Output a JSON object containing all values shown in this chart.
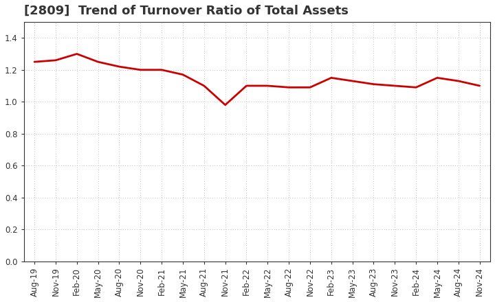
{
  "title": "[2809]  Trend of Turnover Ratio of Total Assets",
  "x_labels": [
    "Aug-19",
    "Nov-19",
    "Feb-20",
    "May-20",
    "Aug-20",
    "Nov-20",
    "Feb-21",
    "May-21",
    "Aug-21",
    "Nov-21",
    "Feb-22",
    "May-22",
    "Aug-22",
    "Nov-22",
    "Feb-23",
    "May-23",
    "Aug-23",
    "Nov-23",
    "Feb-24",
    "May-24",
    "Aug-24",
    "Nov-24"
  ],
  "y_values": [
    1.25,
    1.26,
    1.3,
    1.25,
    1.22,
    1.2,
    1.2,
    1.17,
    1.1,
    0.98,
    1.1,
    1.1,
    1.09,
    1.09,
    1.15,
    1.13,
    1.11,
    1.1,
    1.09,
    1.15,
    1.13,
    1.1
  ],
  "line_color": "#cc0000",
  "line_width": 2.0,
  "ylim": [
    0.0,
    1.5
  ],
  "yticks": [
    0.0,
    0.2,
    0.4,
    0.6,
    0.8,
    1.0,
    1.2,
    1.4
  ],
  "background_color": "#ffffff",
  "grid_color": "#aaaaaa",
  "title_fontsize": 13,
  "tick_fontsize": 8.5,
  "axis_label_color": "#333333",
  "spine_color": "#333333"
}
